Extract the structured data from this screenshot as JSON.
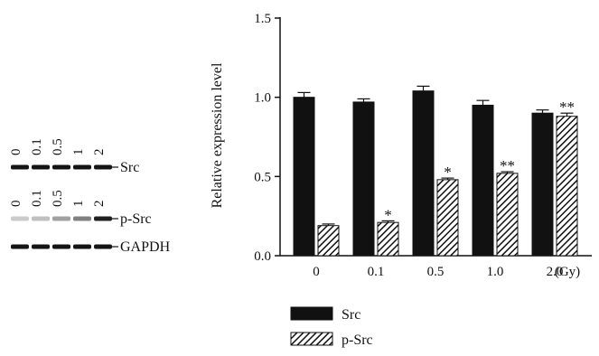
{
  "blot": {
    "lanes_top": [
      "0",
      "0.1",
      "0.5",
      "1",
      "2"
    ],
    "lanes_mid": [
      "0",
      "0.1",
      "0.5",
      "1",
      "2"
    ],
    "rows": [
      {
        "label": "Src",
        "intensity": [
          1.0,
          1.0,
          1.0,
          1.0,
          1.0
        ]
      },
      {
        "label": "p-Src",
        "intensity": [
          0.15,
          0.2,
          0.35,
          0.5,
          0.95
        ]
      },
      {
        "label": "GAPDH",
        "intensity": [
          1.0,
          1.0,
          1.0,
          1.0,
          1.0
        ]
      }
    ]
  },
  "chart_data": {
    "type": "bar",
    "categories": [
      "0",
      "0.1",
      "0.5",
      "1.0",
      "2.0"
    ],
    "x_unit": "(Gy)",
    "ylabel": "Relative expression level",
    "ylim": [
      0,
      1.5
    ],
    "yticks": [
      "0.0",
      "0.5",
      "1.0",
      "1.5"
    ],
    "series": [
      {
        "name": "Src",
        "values": [
          1.0,
          0.97,
          1.04,
          0.95,
          0.9
        ],
        "errors": [
          0.03,
          0.02,
          0.03,
          0.03,
          0.02
        ],
        "color": "#111111",
        "pattern": "solid"
      },
      {
        "name": "p-Src",
        "values": [
          0.19,
          0.21,
          0.48,
          0.52,
          0.88
        ],
        "errors": [
          0.01,
          0.01,
          0.01,
          0.01,
          0.02
        ],
        "color": "#111111",
        "pattern": "hatch"
      }
    ],
    "annotations": [
      "",
      "*",
      "*",
      "**",
      "**"
    ],
    "legend": "bottom",
    "grid": false
  }
}
